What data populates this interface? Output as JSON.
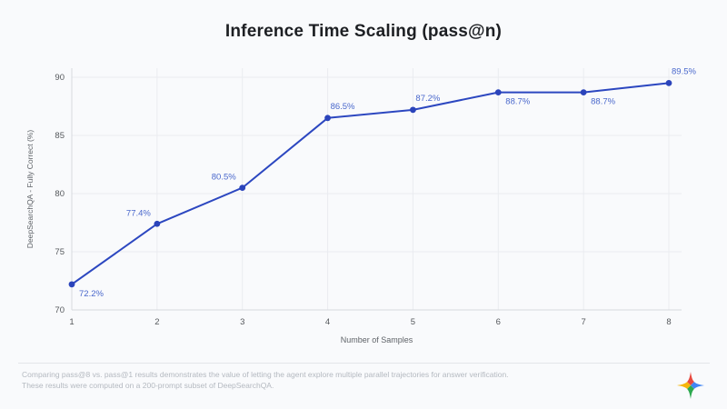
{
  "title": "Inference Time Scaling (pass@n)",
  "chart_data": {
    "type": "line",
    "x": [
      1,
      2,
      3,
      4,
      5,
      6,
      7,
      8
    ],
    "values": [
      72.2,
      77.4,
      80.5,
      86.5,
      87.2,
      88.7,
      88.7,
      89.5
    ],
    "point_labels": [
      "72.2%",
      "77.4%",
      "80.5%",
      "86.5%",
      "87.2%",
      "88.7%",
      "88.7%",
      "89.5%"
    ],
    "label_placement": [
      "below-right",
      "above-left",
      "above-left",
      "above-right",
      "above-right",
      "below-right",
      "below-right",
      "above-right"
    ],
    "title": "Inference Time Scaling (pass@n)",
    "xlabel": "Number of Samples",
    "ylabel": "DeepSearchQA - Fully Correct (%)",
    "ylim": [
      70,
      90
    ],
    "yticks": [
      70,
      75,
      80,
      85,
      90
    ],
    "xticks": [
      1,
      2,
      3,
      4,
      5,
      6,
      7,
      8
    ],
    "grid": true,
    "legend": "none",
    "line_color": "#2c47c0",
    "marker_color": "#2b44bb",
    "point_label_color": "#4a68cc",
    "tick_color": "#55585c",
    "axis_title_color": "#5f6368",
    "gridline_color": "#eaecf0",
    "axis_line_color": "#d6d9de"
  },
  "footer": {
    "line1": "Comparing pass@8 vs. pass@1 results demonstrates the value of letting the agent explore multiple parallel trajectories for answer verification.",
    "line2": "These results were computed on a 200-prompt subset of DeepSearchQA."
  },
  "logo": {
    "name": "gemini-sparkle",
    "colors": {
      "top": "#e8493f",
      "right": "#4285f4",
      "bottom": "#2da94f",
      "left": "#f5b60a"
    }
  }
}
